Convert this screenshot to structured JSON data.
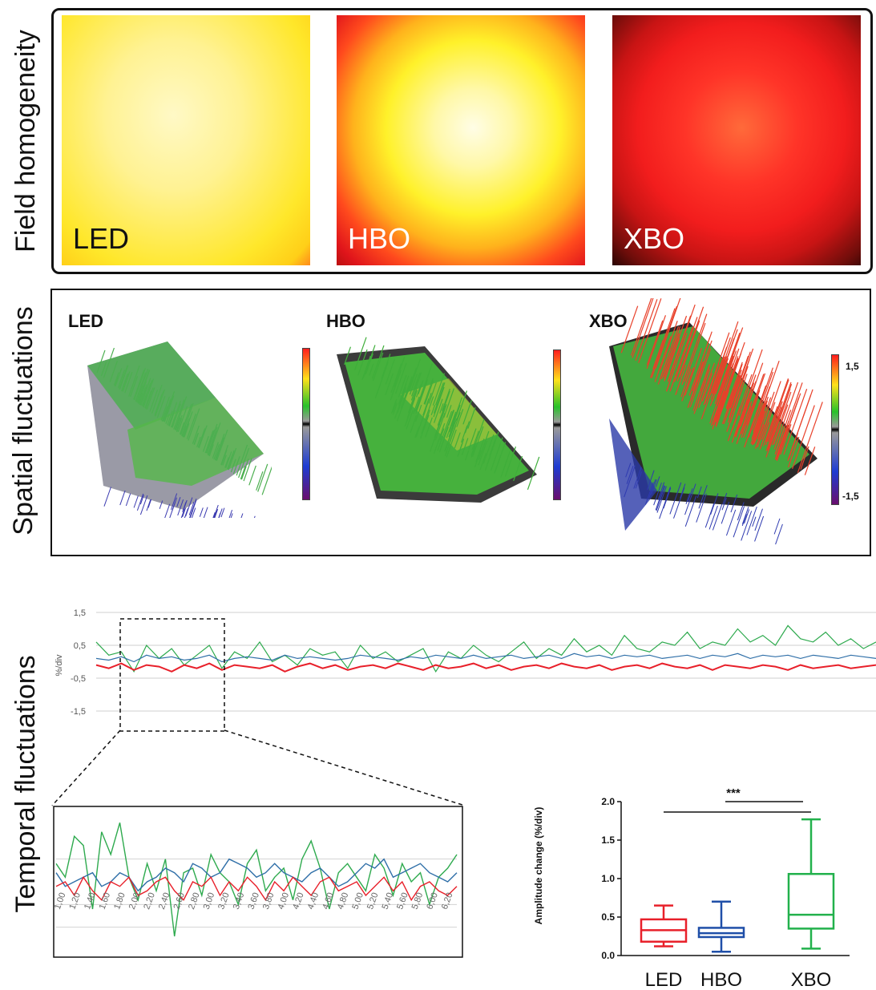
{
  "rows": {
    "field": "Field homogeneity",
    "spatial": "Spatial fluctuations",
    "temporal": "Temporal fluctuations"
  },
  "field_panels": [
    {
      "label": "LED",
      "label_color": "#111111"
    },
    {
      "label": "HBO",
      "label_color": "#ffffff"
    },
    {
      "label": "XBO",
      "label_color": "#ffffff"
    }
  ],
  "spatial_panels": [
    {
      "label": "LED"
    },
    {
      "label": "HBO"
    },
    {
      "label": "XBO"
    }
  ],
  "colorbar": {
    "max": "1,5",
    "min": "-1,5"
  },
  "colors": {
    "green": "#2eaa4e",
    "blue": "#2f6fa8",
    "red": "#e8202a",
    "box_blue": "#1f4fa8",
    "box_green": "#22b14c"
  },
  "chart_data": [
    {
      "type": "line",
      "ylabel": "%/div",
      "yticks": [
        "1,5",
        "0,5",
        "-0,5",
        "-1,5"
      ],
      "ylim": [
        -1.5,
        1.5
      ],
      "grid": true,
      "series": [
        {
          "color": "#2eaa4e",
          "values": [
            0.6,
            0.2,
            0.3,
            -0.3,
            0.5,
            0.1,
            0.4,
            -0.1,
            0.2,
            0.5,
            -0.2,
            0.3,
            0.1,
            0.6,
            0.0,
            0.2,
            -0.1,
            0.4,
            0.2,
            0.3,
            -0.2,
            0.5,
            0.1,
            0.3,
            0.0,
            0.2,
            0.4,
            -0.3,
            0.3,
            0.1,
            0.5,
            0.2,
            0.0,
            0.3,
            0.6,
            0.1,
            0.4,
            0.2,
            0.7,
            0.3,
            0.5,
            0.2,
            0.8,
            0.4,
            0.3,
            0.6,
            0.5,
            0.9,
            0.4,
            0.6,
            0.5,
            1.0,
            0.6,
            0.8,
            0.5,
            1.1,
            0.7,
            0.6,
            0.9,
            0.5,
            0.7,
            0.4,
            0.6
          ]
        },
        {
          "color": "#2f6fa8",
          "values": [
            0.1,
            0.05,
            0.15,
            0.0,
            0.2,
            0.1,
            0.15,
            0.05,
            0.1,
            0.2,
            0.0,
            0.1,
            0.15,
            0.1,
            0.05,
            0.2,
            0.1,
            0.15,
            0.1,
            0.05,
            0.1,
            0.2,
            0.15,
            0.1,
            0.05,
            0.15,
            0.1,
            0.2,
            0.15,
            0.1,
            0.2,
            0.1,
            0.15,
            0.2,
            0.1,
            0.15,
            0.2,
            0.1,
            0.25,
            0.15,
            0.2,
            0.1,
            0.2,
            0.15,
            0.2,
            0.1,
            0.15,
            0.2,
            0.1,
            0.2,
            0.15,
            0.25,
            0.1,
            0.2,
            0.15,
            0.2,
            0.1,
            0.2,
            0.15,
            0.1,
            0.2,
            0.15,
            0.1
          ]
        },
        {
          "color": "#e8202a",
          "values": [
            -0.1,
            -0.2,
            -0.05,
            -0.25,
            -0.1,
            -0.15,
            -0.3,
            -0.1,
            -0.2,
            -0.05,
            -0.25,
            -0.1,
            -0.15,
            -0.2,
            -0.1,
            -0.3,
            -0.15,
            -0.05,
            -0.2,
            -0.1,
            -0.25,
            -0.15,
            -0.1,
            -0.2,
            -0.05,
            -0.15,
            -0.25,
            -0.1,
            -0.2,
            -0.15,
            -0.05,
            -0.2,
            -0.1,
            -0.25,
            -0.15,
            -0.1,
            -0.2,
            -0.05,
            -0.15,
            -0.2,
            -0.1,
            -0.25,
            -0.15,
            -0.1,
            -0.2,
            -0.05,
            -0.15,
            -0.2,
            -0.1,
            -0.25,
            -0.1,
            -0.15,
            -0.2,
            -0.1,
            -0.15,
            -0.25,
            -0.1,
            -0.2,
            -0.15,
            -0.1,
            -0.2,
            -0.15,
            -0.1
          ]
        }
      ]
    },
    {
      "type": "line",
      "xticks": [
        "1,00",
        "1,20",
        "1,40",
        "1,60",
        "1,80",
        "2,00",
        "2,20",
        "2,40",
        "2,60",
        "2,80",
        "3,00",
        "3,20",
        "3,40",
        "3,60",
        "3,80",
        "4,00",
        "4,20",
        "4,40",
        "4,60",
        "4,80",
        "5,00",
        "5,20",
        "5,40",
        "5,60",
        "5,80",
        "6,00",
        "6,20"
      ],
      "grid": true,
      "series": [
        {
          "color": "#2eaa4e",
          "values": [
            0.4,
            0.1,
            1.0,
            0.8,
            -0.6,
            1.1,
            0.6,
            1.3,
            0.1,
            -0.4,
            0.4,
            -0.2,
            0.5,
            -1.2,
            0.2,
            0.3,
            -0.3,
            0.6,
            0.2,
            0.0,
            -0.5,
            0.4,
            0.7,
            -0.2,
            0.1,
            0.3,
            -0.4,
            0.5,
            0.9,
            0.3,
            -0.6,
            0.2,
            0.4,
            0.1,
            -0.2,
            0.6,
            0.3,
            -0.3,
            0.4,
            0.0,
            0.2,
            -0.5,
            0.1,
            0.3,
            0.6
          ]
        },
        {
          "color": "#2f6fa8",
          "values": [
            0.2,
            -0.1,
            0.0,
            0.1,
            0.2,
            -0.1,
            0.0,
            0.2,
            0.1,
            -0.2,
            0.0,
            0.1,
            0.3,
            0.2,
            0.0,
            0.4,
            0.3,
            0.1,
            0.2,
            0.5,
            0.4,
            0.3,
            0.1,
            0.2,
            0.4,
            0.2,
            0.1,
            0.0,
            0.2,
            0.3,
            0.1,
            -0.1,
            0.0,
            0.2,
            0.4,
            0.3,
            0.5,
            0.1,
            0.2,
            0.3,
            0.4,
            0.2,
            0.1,
            0.0,
            0.2
          ]
        },
        {
          "color": "#e8202a",
          "values": [
            -0.1,
            0.0,
            -0.3,
            0.1,
            -0.2,
            -0.4,
            0.0,
            -0.1,
            0.1,
            -0.3,
            -0.2,
            0.0,
            0.1,
            -0.2,
            -0.4,
            0.0,
            -0.1,
            0.1,
            -0.3,
            0.0,
            -0.2,
            0.1,
            -0.1,
            -0.4,
            0.0,
            -0.2,
            0.1,
            -0.1,
            -0.3,
            0.0,
            0.1,
            -0.2,
            -0.1,
            0.0,
            -0.3,
            -0.1,
            0.1,
            -0.2,
            0.0,
            -0.4,
            -0.1,
            0.0,
            -0.2,
            -0.3,
            -0.1
          ]
        }
      ]
    },
    {
      "type": "box",
      "ylabel": "Amplitude change (%/div)",
      "yticks": [
        "0.0",
        "0.5",
        "1.0",
        "1.5",
        "2.0"
      ],
      "ylim": [
        0,
        2.0
      ],
      "categories": [
        "LED",
        "HBO",
        "XBO"
      ],
      "boxes": [
        {
          "name": "LED",
          "min": 0.12,
          "q1": 0.18,
          "median": 0.33,
          "q3": 0.47,
          "max": 0.65,
          "color": "#e8202a"
        },
        {
          "name": "HBO",
          "min": 0.05,
          "q1": 0.24,
          "median": 0.29,
          "q3": 0.36,
          "max": 0.7,
          "color": "#1f4fa8"
        },
        {
          "name": "XBO",
          "min": 0.09,
          "q1": 0.35,
          "median": 0.53,
          "q3": 1.06,
          "max": 1.77,
          "color": "#22b14c"
        }
      ],
      "significance": "***"
    }
  ]
}
